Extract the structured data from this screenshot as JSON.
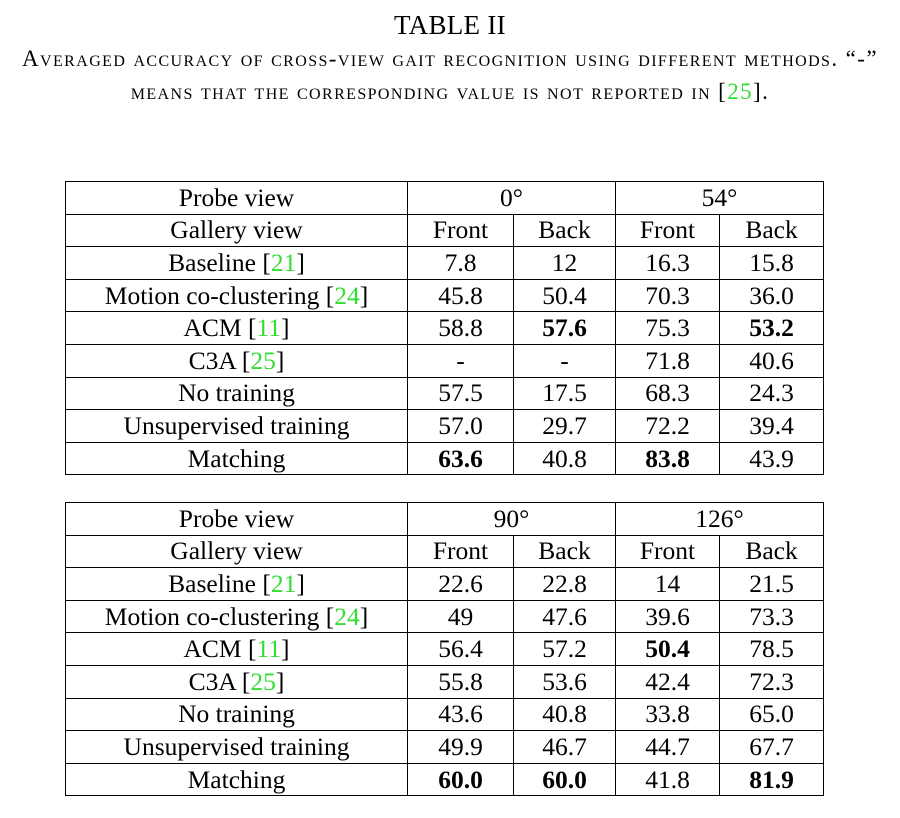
{
  "caption": {
    "table_label": "TABLE II",
    "text_before": "Averaged accuracy of cross-view gait recognition using different methods. “-” means that the corresponding value is not reported in [",
    "ref": "25",
    "text_after": "]."
  },
  "tables": [
    {
      "probe_label": "Probe view",
      "gallery_label": "Gallery view",
      "views": [
        "0°",
        "54°"
      ],
      "gallery_cols": [
        "Front",
        "Back",
        "Front",
        "Back"
      ],
      "rows": [
        {
          "method": "Baseline",
          "ref": "21",
          "values": [
            "7.8",
            "12",
            "16.3",
            "15.8"
          ],
          "bold": [
            false,
            false,
            false,
            false
          ]
        },
        {
          "method": "Motion co-clustering",
          "ref": "24",
          "values": [
            "45.8",
            "50.4",
            "70.3",
            "36.0"
          ],
          "bold": [
            false,
            false,
            false,
            false
          ]
        },
        {
          "method": "ACM",
          "ref": "11",
          "values": [
            "58.8",
            "57.6",
            "75.3",
            "53.2"
          ],
          "bold": [
            false,
            true,
            false,
            true
          ]
        },
        {
          "method": "C3A",
          "ref": "25",
          "values": [
            "-",
            "-",
            "71.8",
            "40.6"
          ],
          "bold": [
            false,
            false,
            false,
            false
          ]
        },
        {
          "method": "No training",
          "ref": "",
          "values": [
            "57.5",
            "17.5",
            "68.3",
            "24.3"
          ],
          "bold": [
            false,
            false,
            false,
            false
          ]
        },
        {
          "method": "Unsupervised training",
          "ref": "",
          "values": [
            "57.0",
            "29.7",
            "72.2",
            "39.4"
          ],
          "bold": [
            false,
            false,
            false,
            false
          ]
        },
        {
          "method": "Matching",
          "ref": "",
          "values": [
            "63.6",
            "40.8",
            "83.8",
            "43.9"
          ],
          "bold": [
            true,
            false,
            true,
            false
          ]
        }
      ]
    },
    {
      "probe_label": "Probe view",
      "gallery_label": "Gallery view",
      "views": [
        "90°",
        "126°"
      ],
      "gallery_cols": [
        "Front",
        "Back",
        "Front",
        "Back"
      ],
      "rows": [
        {
          "method": "Baseline",
          "ref": "21",
          "values": [
            "22.6",
            "22.8",
            "14",
            "21.5"
          ],
          "bold": [
            false,
            false,
            false,
            false
          ]
        },
        {
          "method": "Motion co-clustering",
          "ref": "24",
          "values": [
            "49",
            "47.6",
            "39.6",
            "73.3"
          ],
          "bold": [
            false,
            false,
            false,
            false
          ]
        },
        {
          "method": "ACM",
          "ref": "11",
          "values": [
            "56.4",
            "57.2",
            "50.4",
            "78.5"
          ],
          "bold": [
            false,
            false,
            true,
            false
          ]
        },
        {
          "method": "C3A",
          "ref": "25",
          "values": [
            "55.8",
            "53.6",
            "42.4",
            "72.3"
          ],
          "bold": [
            false,
            false,
            false,
            false
          ]
        },
        {
          "method": "No training",
          "ref": "",
          "values": [
            "43.6",
            "40.8",
            "33.8",
            "65.0"
          ],
          "bold": [
            false,
            false,
            false,
            false
          ]
        },
        {
          "method": "Unsupervised training",
          "ref": "",
          "values": [
            "49.9",
            "46.7",
            "44.7",
            "67.7"
          ],
          "bold": [
            false,
            false,
            false,
            false
          ]
        },
        {
          "method": "Matching",
          "ref": "",
          "values": [
            "60.0",
            "60.0",
            "41.8",
            "81.9"
          ],
          "bold": [
            true,
            true,
            false,
            true
          ]
        }
      ]
    }
  ],
  "colors": {
    "citation": "#33dd33",
    "text": "#000000",
    "border": "#000000"
  }
}
